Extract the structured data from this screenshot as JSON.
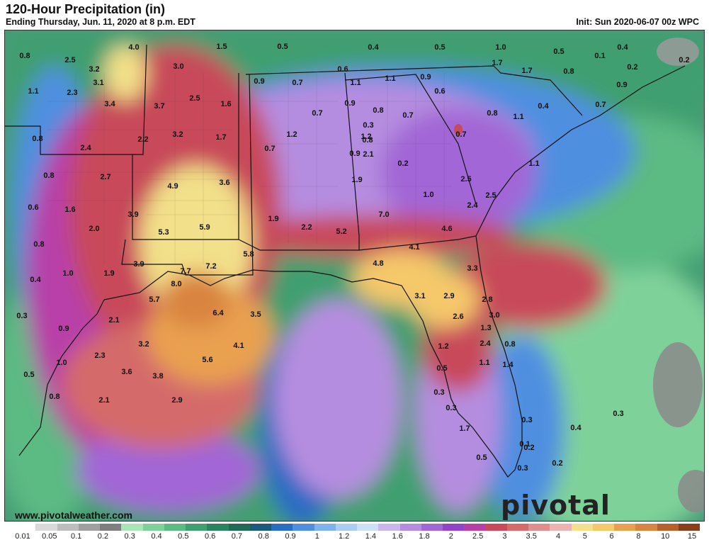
{
  "header": {
    "title": "120-Hour Precipitation (in)",
    "subtitle": "Ending Thursday, Jun. 11, 2020 at 8 p.m. EDT",
    "init": "Init: Sun 2020-06-07 00z WPC"
  },
  "credit": "www.pivotalweather.com",
  "brand": "pivotal weather",
  "legend": {
    "ticks": [
      "0.01",
      "0.05",
      "0.1",
      "0.2",
      "0.3",
      "0.4",
      "0.5",
      "0.6",
      "0.7",
      "0.8",
      "0.9",
      "1",
      "1.2",
      "1.4",
      "1.6",
      "1.8",
      "2",
      "2.5",
      "3",
      "3.5",
      "4",
      "5",
      "6",
      "8",
      "10",
      "15"
    ],
    "colors": [
      "#ffffff",
      "#d9d9d9",
      "#bdbdbd",
      "#a0a0a0",
      "#7f7f7f",
      "#a8e6b8",
      "#7fd19a",
      "#5cba83",
      "#3f9f6f",
      "#2a8460",
      "#1f6b55",
      "#1a5a7a",
      "#2b6cc4",
      "#4f8fe0",
      "#7fb2ee",
      "#a9cdf5",
      "#cce0fa",
      "#c9b6ec",
      "#b58de0",
      "#a266d6",
      "#9243c9",
      "#b83fa8",
      "#c84a5a",
      "#d46a6a",
      "#e08f8f",
      "#edb3b3",
      "#f3e08a",
      "#f5c86a",
      "#e9a050",
      "#d98440",
      "#b8602c",
      "#8a3e1a"
    ]
  },
  "map_labels": [
    "0.8",
    "2.5",
    "3.2",
    "3.1",
    "1.1",
    "2.3",
    "3.4",
    "0.8",
    "2.4",
    "0.8",
    "2.7",
    "0.6",
    "1.6",
    "2.0",
    "0.8",
    "1.0",
    "0.4",
    "1.9",
    "0.3",
    "2.1",
    "0.9",
    "1.0",
    "0.5",
    "0.8",
    "2.3",
    "3.2",
    "3.6",
    "3.8",
    "2.1",
    "2.9",
    "4.0",
    "3.0",
    "3.7",
    "2.5",
    "1.6",
    "3.2",
    "1.7",
    "2.2",
    "4.9",
    "3.6",
    "3.9",
    "5.3",
    "5.9",
    "5.8",
    "3.9",
    "7.7",
    "7.2",
    "8.0",
    "5.7",
    "6.4",
    "3.5",
    "4.1",
    "5.6",
    "1.5",
    "0.5",
    "0.4",
    "0.5",
    "1.0",
    "0.5",
    "0.1",
    "0.4",
    "0.2",
    "0.2",
    "0.9",
    "0.7",
    "0.6",
    "1.1",
    "1.1",
    "0.9",
    "1.7",
    "1.7",
    "0.6",
    "0.4",
    "0.8",
    "0.9",
    "0.7",
    "0.7",
    "0.9",
    "0.8",
    "0.7",
    "1.2",
    "0.3",
    "1.2",
    "0.8",
    "0.7",
    "1.1",
    "0.8",
    "0.9",
    "0.2",
    "2.1",
    "1.9",
    "1.1",
    "0.7",
    "1.0",
    "2.5",
    "2.5",
    "2.4",
    "1.9",
    "2.2",
    "5.2",
    "7.0",
    "4.6",
    "4.1",
    "4.8",
    "3.3",
    "3.1",
    "2.9",
    "2.8",
    "2.6",
    "3.0",
    "1.3",
    "2.4",
    "0.8",
    "1.2",
    "1.1",
    "1.4",
    "0.5",
    "0.3",
    "0.3",
    "1.7",
    "0.5",
    "0.3",
    "0.2",
    "0.4",
    "0.3",
    "0.1",
    "0.3",
    "0.2"
  ]
}
